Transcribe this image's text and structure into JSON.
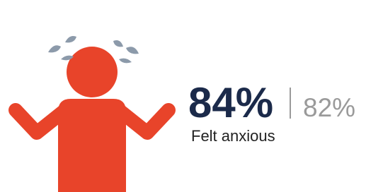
{
  "stat": {
    "primary": "84%",
    "secondary": "82%",
    "label": "Felt anxious"
  }
}
